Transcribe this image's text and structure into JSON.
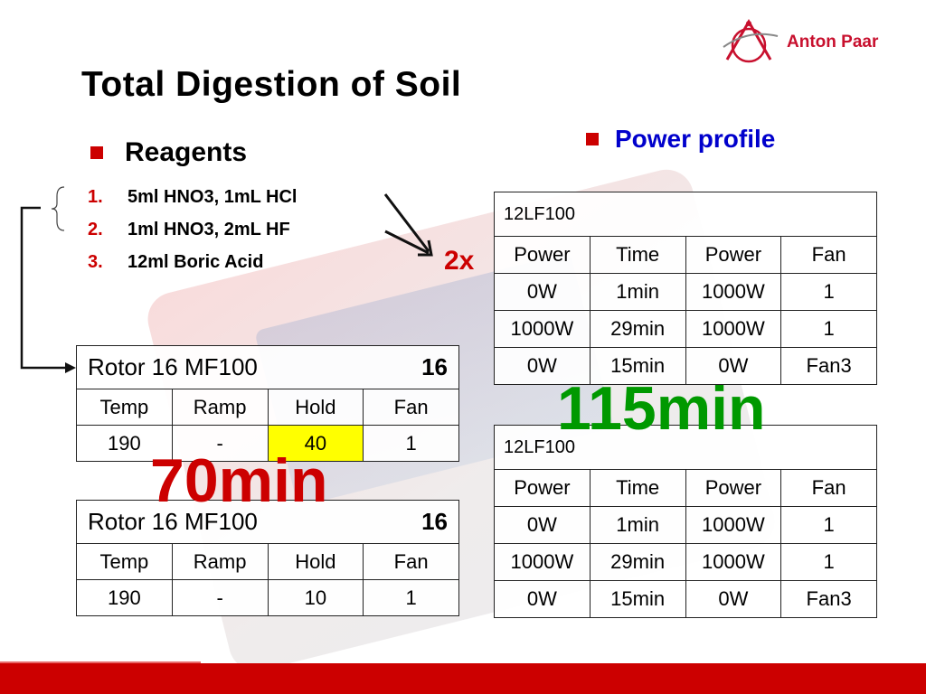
{
  "logo": {
    "text": "Anton Paar"
  },
  "title": "Total Digestion of Soil",
  "reagents": {
    "heading": "Reagents",
    "items": [
      {
        "num": "1.",
        "text": "5ml HNO3, 1mL HCl"
      },
      {
        "num": "2.",
        "text": "1ml HNO3, 2mL HF"
      },
      {
        "num": "3.",
        "text": "12ml Boric Acid"
      }
    ]
  },
  "multiplier": "2x",
  "power_profile_heading": "Power profile",
  "rotor_tables": [
    {
      "caption": "Rotor 16 MF100",
      "count": "16",
      "columns": [
        "Temp",
        "Ramp",
        "Hold",
        "Fan"
      ],
      "row": [
        "190",
        "-",
        "40",
        "1"
      ],
      "highlight_color": "#ffff00"
    },
    {
      "caption": "Rotor 16 MF100",
      "count": "16",
      "columns": [
        "Temp",
        "Ramp",
        "Hold",
        "Fan"
      ],
      "row": [
        "190",
        "-",
        "10",
        "1"
      ]
    }
  ],
  "profile_tables": [
    {
      "caption": "12LF100",
      "columns": [
        "Power",
        "Time",
        "Power",
        "Fan"
      ],
      "rows": [
        [
          "0W",
          "1min",
          "1000W",
          "1"
        ],
        [
          "1000W",
          "29min",
          "1000W",
          "1"
        ],
        [
          "0W",
          "15min",
          "0W",
          "Fan3"
        ]
      ]
    },
    {
      "caption": "12LF100",
      "columns": [
        "Power",
        "Time",
        "Power",
        "Fan"
      ],
      "rows": [
        [
          "0W",
          "1min",
          "1000W",
          "1"
        ],
        [
          "1000W",
          "29min",
          "1000W",
          "1"
        ],
        [
          "0W",
          "15min",
          "0W",
          "Fan3"
        ]
      ]
    }
  ],
  "time_totals": {
    "profile": "115min",
    "rotor": "70min"
  },
  "colors": {
    "accent_red": "#cc0000",
    "heading_blue": "#0000cc",
    "total_green": "#009900"
  }
}
